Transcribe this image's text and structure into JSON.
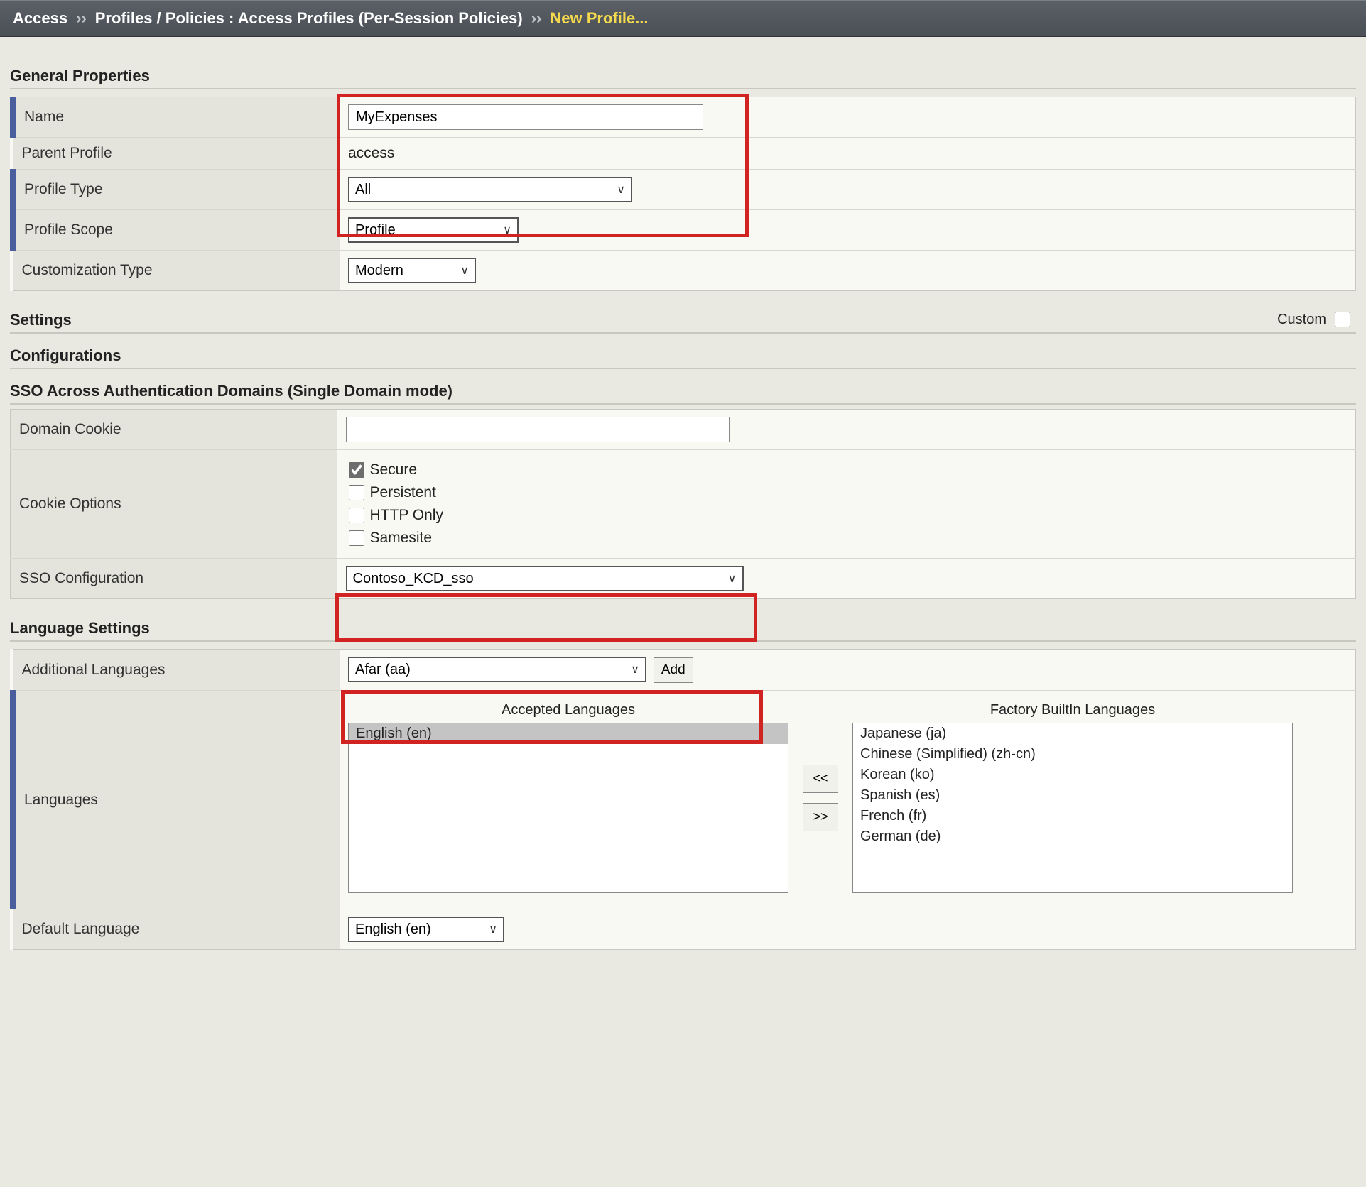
{
  "breadcrumb": {
    "root": "Access",
    "sep": "››",
    "mid": "Profiles / Policies : Access Profiles (Per-Session Policies)",
    "current": "New Profile..."
  },
  "sections": {
    "general": "General Properties",
    "settings": "Settings",
    "custom_label": "Custom",
    "configurations": "Configurations",
    "sso_domains": "SSO Across Authentication Domains (Single Domain mode)",
    "language": "Language Settings"
  },
  "general": {
    "name_label": "Name",
    "name_value": "MyExpenses",
    "parent_label": "Parent Profile",
    "parent_value": "access",
    "profile_type_label": "Profile Type",
    "profile_type_value": "All",
    "profile_scope_label": "Profile Scope",
    "profile_scope_value": "Profile",
    "custom_type_label": "Customization Type",
    "custom_type_value": "Modern"
  },
  "sso": {
    "domain_cookie_label": "Domain Cookie",
    "domain_cookie_value": "",
    "cookie_options_label": "Cookie Options",
    "options": {
      "secure": "Secure",
      "persistent": "Persistent",
      "http_only": "HTTP Only",
      "samesite": "Samesite"
    },
    "checked": {
      "secure": true,
      "persistent": false,
      "http_only": false,
      "samesite": false
    },
    "sso_config_label": "SSO Configuration",
    "sso_config_value": "Contoso_KCD_sso"
  },
  "lang": {
    "addl_label": "Additional Languages",
    "addl_value": "Afar (aa)",
    "add_button": "Add",
    "languages_label": "Languages",
    "accepted_title": "Accepted Languages",
    "factory_title": "Factory BuiltIn Languages",
    "accepted": [
      "English (en)"
    ],
    "factory": [
      "Japanese (ja)",
      "Chinese (Simplified) (zh-cn)",
      "Korean (ko)",
      "Spanish (es)",
      "French (fr)",
      "German (de)"
    ],
    "move_left": "<<",
    "move_right": ">>",
    "default_label": "Default Language",
    "default_value": "English (en)"
  },
  "highlight_color": "#d22323"
}
